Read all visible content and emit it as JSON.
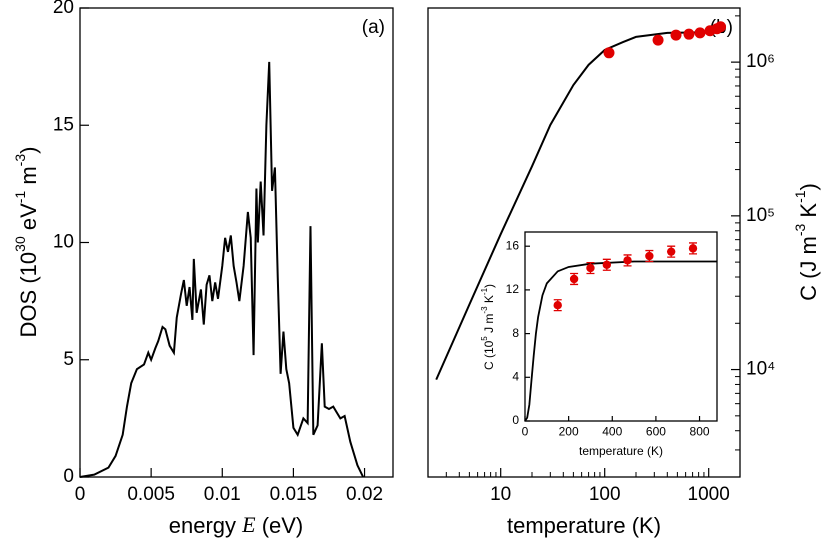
{
  "chart_data": [
    {
      "type": "line",
      "annotation": "(a)",
      "xlabel_parts": [
        "energy ",
        "E",
        " (eV)"
      ],
      "ylabel_parts": [
        "DOS (10",
        "30",
        " eV",
        "-1",
        " m",
        "-3",
        ")"
      ],
      "xlim": [
        0,
        0.022
      ],
      "xticks": [
        0,
        0.005,
        0.01,
        0.015,
        0.02
      ],
      "ylim": [
        0,
        20
      ],
      "yticks": [
        0,
        5,
        10,
        15,
        20
      ],
      "series": [
        {
          "type": "line",
          "color": "#000000",
          "x": [
            0,
            0.001,
            0.002,
            0.0025,
            0.003,
            0.0033,
            0.0036,
            0.004,
            0.0045,
            0.0048,
            0.005,
            0.0053,
            0.0055,
            0.0058,
            0.006,
            0.0063,
            0.0066,
            0.0068,
            0.0071,
            0.0073,
            0.0075,
            0.0077,
            0.0079,
            0.008,
            0.0082,
            0.0085,
            0.0087,
            0.0089,
            0.0091,
            0.0093,
            0.0095,
            0.0097,
            0.01,
            0.0102,
            0.0104,
            0.0106,
            0.0108,
            0.011,
            0.0112,
            0.0115,
            0.0118,
            0.012,
            0.0122,
            0.0124,
            0.0125,
            0.0127,
            0.0129,
            0.0131,
            0.0133,
            0.0135,
            0.0137,
            0.0139,
            0.0141,
            0.0143,
            0.0145,
            0.0147,
            0.015,
            0.0153,
            0.0157,
            0.016,
            0.0162,
            0.0164,
            0.0167,
            0.017,
            0.0172,
            0.0175,
            0.0178,
            0.018,
            0.0183,
            0.0186,
            0.019,
            0.0195,
            0.0199
          ],
          "values": [
            0,
            0.1,
            0.4,
            0.9,
            1.8,
            3.0,
            4.0,
            4.6,
            4.8,
            5.3,
            5.0,
            5.5,
            5.8,
            6.4,
            6.3,
            5.6,
            5.3,
            6.8,
            7.8,
            8.4,
            7.3,
            8.1,
            6.7,
            9.3,
            7.0,
            8.0,
            6.5,
            8.2,
            8.6,
            7.5,
            8.3,
            7.6,
            9.0,
            10.2,
            9.6,
            10.3,
            9.0,
            8.3,
            7.5,
            9.0,
            11.3,
            10.2,
            5.2,
            12.3,
            10.0,
            12.6,
            10.3,
            15.0,
            17.7,
            12.2,
            13.2,
            8.5,
            4.4,
            6.2,
            4.6,
            4.0,
            2.1,
            1.8,
            2.5,
            2.3,
            10.7,
            1.8,
            2.2,
            5.7,
            3.0,
            2.9,
            3.0,
            2.8,
            2.5,
            2.6,
            1.5,
            0.5,
            0
          ]
        }
      ]
    },
    {
      "type": "line",
      "annotation": "(b)",
      "xlog": true,
      "ylog": true,
      "xlabel": "temperature (K)",
      "ylabel_parts": [
        "C (J m",
        "-3",
        " K",
        "-1",
        ")"
      ],
      "xlim": [
        2,
        2000
      ],
      "xticks": [
        10,
        100,
        1000
      ],
      "xminorticks": [
        3,
        4,
        5,
        6,
        7,
        8,
        9,
        20,
        30,
        40,
        50,
        60,
        70,
        80,
        90,
        200,
        300,
        400,
        500,
        600,
        700,
        800,
        900
      ],
      "ylim": [
        2000,
        2250000
      ],
      "yticks": [
        {
          "value": 10000,
          "label": "10⁴"
        },
        {
          "value": 100000,
          "label": "10⁵"
        },
        {
          "value": 1000000,
          "label": "10⁶"
        }
      ],
      "yminorticks": [
        3000,
        4000,
        5000,
        6000,
        7000,
        8000,
        9000,
        20000,
        30000,
        40000,
        50000,
        60000,
        70000,
        80000,
        90000,
        200000,
        300000,
        400000,
        500000,
        600000,
        700000,
        800000,
        900000,
        2000000
      ],
      "series": [
        {
          "type": "line",
          "color": "#000000",
          "x": [
            2.4,
            5,
            10,
            20,
            30,
            50,
            70,
            100,
            150,
            200,
            400,
            1400
          ],
          "values": [
            8600,
            26500,
            76000,
            210000,
            390000,
            710000,
            960000,
            1200000,
            1350000,
            1460000,
            1550000,
            1570000
          ]
        },
        {
          "type": "scatter",
          "color": "#e00000",
          "x": [
            110,
            326,
            485,
            646,
            825,
            1030,
            1200,
            1300
          ],
          "values": [
            1150000,
            1390000,
            1500000,
            1520000,
            1550000,
            1600000,
            1650000,
            1700000
          ]
        }
      ]
    },
    {
      "type": "line",
      "xlabel": "temperature (K)",
      "ylabel_parts": [
        "C (10",
        "5",
        " J m",
        "-3",
        " K",
        "-1",
        ")"
      ],
      "xlim": [
        0,
        880
      ],
      "xticks": [
        0,
        200,
        400,
        600,
        800
      ],
      "ylim": [
        0,
        17.3
      ],
      "yticks": [
        0,
        4,
        8,
        12,
        16
      ],
      "series": [
        {
          "type": "line",
          "color": "#000000",
          "x": [
            0,
            10,
            20,
            30,
            40,
            50,
            60,
            80,
            100,
            150,
            200,
            300,
            500,
            880
          ],
          "values": [
            0,
            0.3,
            1.5,
            3.8,
            6,
            8,
            9.5,
            11.5,
            12.6,
            13.7,
            14.1,
            14.4,
            14.6,
            14.6
          ]
        },
        {
          "type": "errorbar",
          "color": "#e00000",
          "x": [
            150,
            225,
            300,
            375,
            470,
            570,
            670,
            770
          ],
          "values": [
            10.6,
            13.0,
            14.0,
            14.3,
            14.7,
            15.1,
            15.5,
            15.8
          ],
          "errors": [
            0.5,
            0.5,
            0.5,
            0.5,
            0.5,
            0.5,
            0.5,
            0.5
          ]
        }
      ]
    }
  ]
}
